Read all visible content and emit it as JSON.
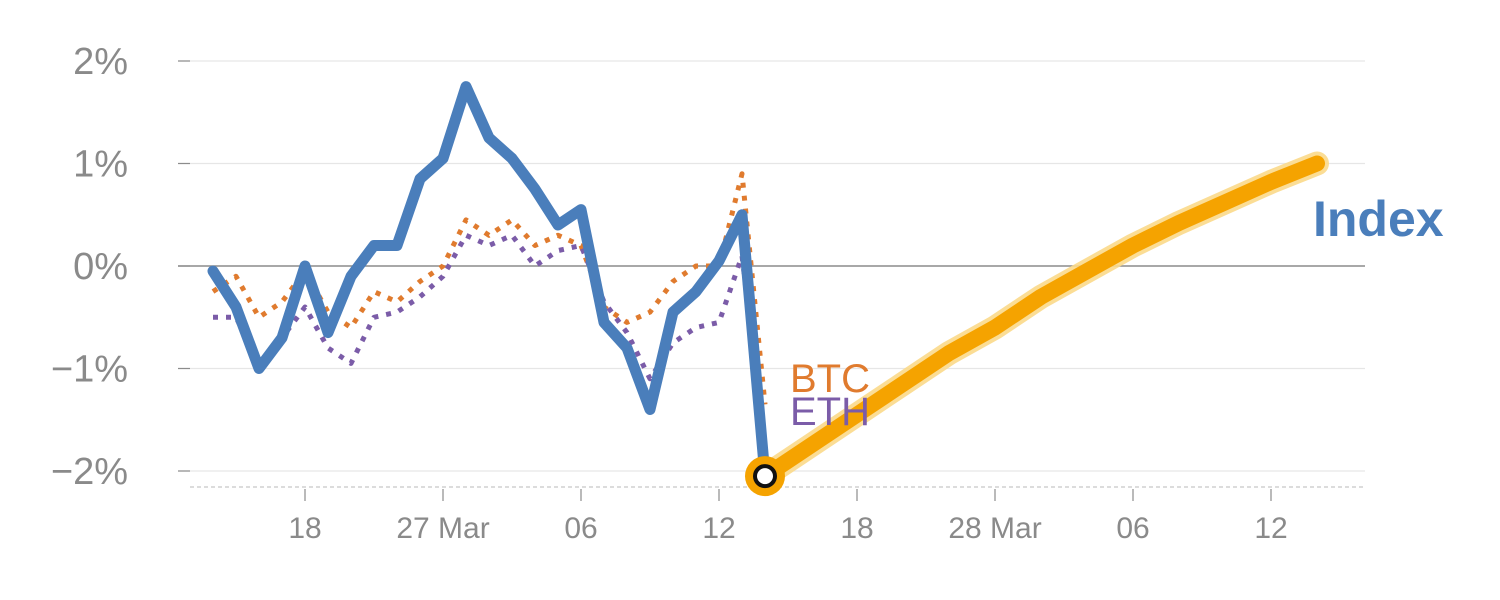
{
  "chart_data": {
    "type": "line",
    "title": "",
    "xlabel": "",
    "ylabel": "",
    "ylim": [
      -2.15,
      2.2
    ],
    "y_ticks": [
      {
        "value": 2,
        "label": "2%"
      },
      {
        "value": 1,
        "label": "1%"
      },
      {
        "value": 0,
        "label": "0%"
      },
      {
        "value": -1,
        "label": "−1%"
      },
      {
        "value": -2,
        "label": "−2%"
      }
    ],
    "x_ticks": [
      {
        "x": 4,
        "label": "18"
      },
      {
        "x": 10,
        "label": "27 Mar"
      },
      {
        "x": 16,
        "label": "06"
      },
      {
        "x": 22,
        "label": "12"
      },
      {
        "x": 28,
        "label": "18"
      },
      {
        "x": 34,
        "label": "28 Mar"
      },
      {
        "x": 40,
        "label": "06"
      },
      {
        "x": 46,
        "label": "12"
      }
    ],
    "grid": true,
    "series": [
      {
        "name": "BTC",
        "color": "#e07b2e",
        "style": "dotted",
        "x": [
          0,
          1,
          2,
          3,
          4,
          5,
          6,
          7,
          8,
          9,
          10,
          11,
          12,
          13,
          14,
          15,
          16,
          17,
          18,
          19,
          20,
          21,
          22,
          23,
          24
        ],
        "values": [
          -0.25,
          -0.1,
          -0.5,
          -0.35,
          -0.05,
          -0.45,
          -0.6,
          -0.25,
          -0.35,
          -0.15,
          0.0,
          0.45,
          0.3,
          0.45,
          0.2,
          0.3,
          0.2,
          -0.4,
          -0.55,
          -0.45,
          -0.15,
          0.0,
          0.0,
          0.9,
          -1.35
        ]
      },
      {
        "name": "ETH",
        "color": "#7b5ca8",
        "style": "dotted",
        "x": [
          0,
          1,
          2,
          3,
          4,
          5,
          6,
          7,
          8,
          9,
          10,
          11,
          12,
          13,
          14,
          15,
          16,
          17,
          18,
          19,
          20,
          21,
          22,
          23,
          24
        ],
        "values": [
          -0.5,
          -0.5,
          -0.95,
          -0.7,
          -0.4,
          -0.8,
          -0.95,
          -0.5,
          -0.45,
          -0.3,
          -0.1,
          0.3,
          0.2,
          0.3,
          0.0,
          0.15,
          0.2,
          -0.35,
          -0.65,
          -1.1,
          -0.75,
          -0.6,
          -0.55,
          0.1,
          -1.8
        ]
      },
      {
        "name": "Index",
        "color": "#4a7ebb",
        "style": "solid",
        "x": [
          0,
          1,
          2,
          3,
          4,
          5,
          6,
          7,
          8,
          9,
          10,
          11,
          12,
          13,
          14,
          15,
          16,
          17,
          18,
          19,
          20,
          21,
          22,
          23,
          24
        ],
        "values": [
          -0.05,
          -0.4,
          -1.0,
          -0.7,
          0.0,
          -0.65,
          -0.1,
          0.2,
          0.2,
          0.85,
          1.05,
          1.75,
          1.25,
          1.05,
          0.75,
          0.4,
          0.55,
          -0.55,
          -0.8,
          -1.4,
          -0.45,
          -0.25,
          0.05,
          0.5,
          -2.05
        ]
      },
      {
        "name": "",
        "color": "#f5a300",
        "style": "projection",
        "x": [
          24,
          26,
          28,
          30,
          32,
          34,
          36,
          38,
          40,
          42,
          44,
          46,
          48
        ],
        "values": [
          -2.05,
          -1.75,
          -1.45,
          -1.15,
          -0.85,
          -0.6,
          -0.3,
          -0.05,
          0.2,
          0.42,
          0.62,
          0.82,
          1.0
        ]
      }
    ],
    "annotations": [
      {
        "text": "BTC",
        "color": "#e07b2e"
      },
      {
        "text": "ETH",
        "color": "#7b5ca8"
      },
      {
        "text": "Index",
        "color": "#4a7ebb"
      }
    ],
    "marker": {
      "x": 24,
      "y": -2.05,
      "color": "#f5a300"
    }
  }
}
